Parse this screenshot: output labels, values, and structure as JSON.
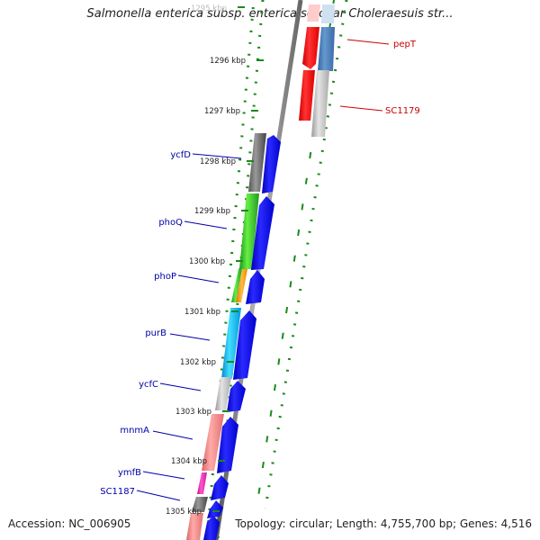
{
  "title": "Salmonella enterica subsp. enterica serovar Choleraesuis str...",
  "footer": {
    "accession": "Accession: NC_006905",
    "summary": "Topology: circular; Length: 4,755,700 bp; Genes: 4,516"
  },
  "ticks": [
    "1295 kbp",
    "1296 kbp",
    "1297 kbp",
    "1298 kbp",
    "1299 kbp",
    "1300 kbp",
    "1301 kbp",
    "1302 kbp",
    "1303 kbp",
    "1304 kbp",
    "1305 kbp"
  ],
  "genes_left": [
    {
      "label": "ycfD",
      "color": "#0000aa"
    },
    {
      "label": "phoQ",
      "color": "#0000aa"
    },
    {
      "label": "phoP",
      "color": "#0000aa"
    },
    {
      "label": "purB",
      "color": "#0000aa"
    },
    {
      "label": "ycfC",
      "color": "#0000aa"
    },
    {
      "label": "mnmA",
      "color": "#0000aa"
    },
    {
      "label": "ymfB",
      "color": "#0000aa"
    },
    {
      "label": "SC1187",
      "color": "#0000aa"
    }
  ],
  "genes_right": [
    {
      "label": "pepT",
      "color": "#cc0000"
    },
    {
      "label": "SC1179",
      "color": "#cc0000"
    }
  ],
  "colors": {
    "forward_strand": "#0000ee",
    "reverse_strand": "#ff0000",
    "backbone": "#808080",
    "gc_dots": "#1a8a1a"
  }
}
